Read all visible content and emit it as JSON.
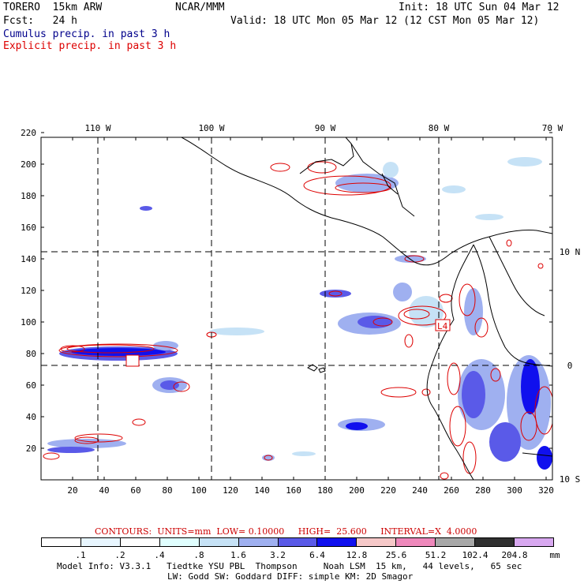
{
  "header": {
    "model": "TORERO  15km ARW",
    "org": "NCAR/MMM",
    "init": "Init: 18 UTC Sun 04 Mar 12",
    "fcst": "Fcst:   24 h",
    "valid": "Valid: 18 UTC Mon 05 Mar 12 (12 CST Mon 05 Mar 12)",
    "legend_cumulus": "Cumulus precip. in past 3 h",
    "legend_explicit": "Explicit precip. in past 3 h",
    "legend_cumulus_color": "#00008b",
    "legend_explicit_color": "#dd0000"
  },
  "axes": {
    "x_ticks": [
      "20",
      "40",
      "60",
      "80",
      "100",
      "120",
      "140",
      "160",
      "180",
      "200",
      "220",
      "240",
      "260",
      "280",
      "300",
      "320"
    ],
    "y_ticks": [
      "20",
      "40",
      "60",
      "80",
      "100",
      "120",
      "140",
      "160",
      "180",
      "200",
      "220"
    ],
    "lon_labels": [
      "110 W",
      "100 W",
      "90 W",
      "80 W",
      "70 W"
    ],
    "lat_labels": [
      "10 N",
      "0",
      "10 S"
    ]
  },
  "annotations": {
    "low_label": "L4"
  },
  "contour_note": "CONTOURS:  UNITS=mm  LOW= 0.10000     HIGH=  25.600     INTERVAL=X  4.0000",
  "colorbar": {
    "labels": [
      ".1",
      ".2",
      ".4",
      ".8",
      "1.6",
      "3.2",
      "6.4",
      "12.8",
      "25.6",
      "51.2",
      "102.4",
      "204.8"
    ],
    "unit": "mm",
    "colors": [
      "#ffffff",
      "#e8f6ff",
      "#ffffff",
      "#e0ffff",
      "#c6e2f6",
      "#9fb0f0",
      "#5a5ae8",
      "#1010ee",
      "#f6c8c8",
      "#ee88bb",
      "#a8a8a8",
      "#303030",
      "#d8a8f0"
    ]
  },
  "footer": {
    "line1": "Model Info: V3.3.1   Tiedtke YSU PBL  Thompson     Noah LSM  15 km,   44 levels,   65 sec",
    "line2": "LW: Godd SW: Goddard DIFF: simple KM: 2D Smagor"
  }
}
